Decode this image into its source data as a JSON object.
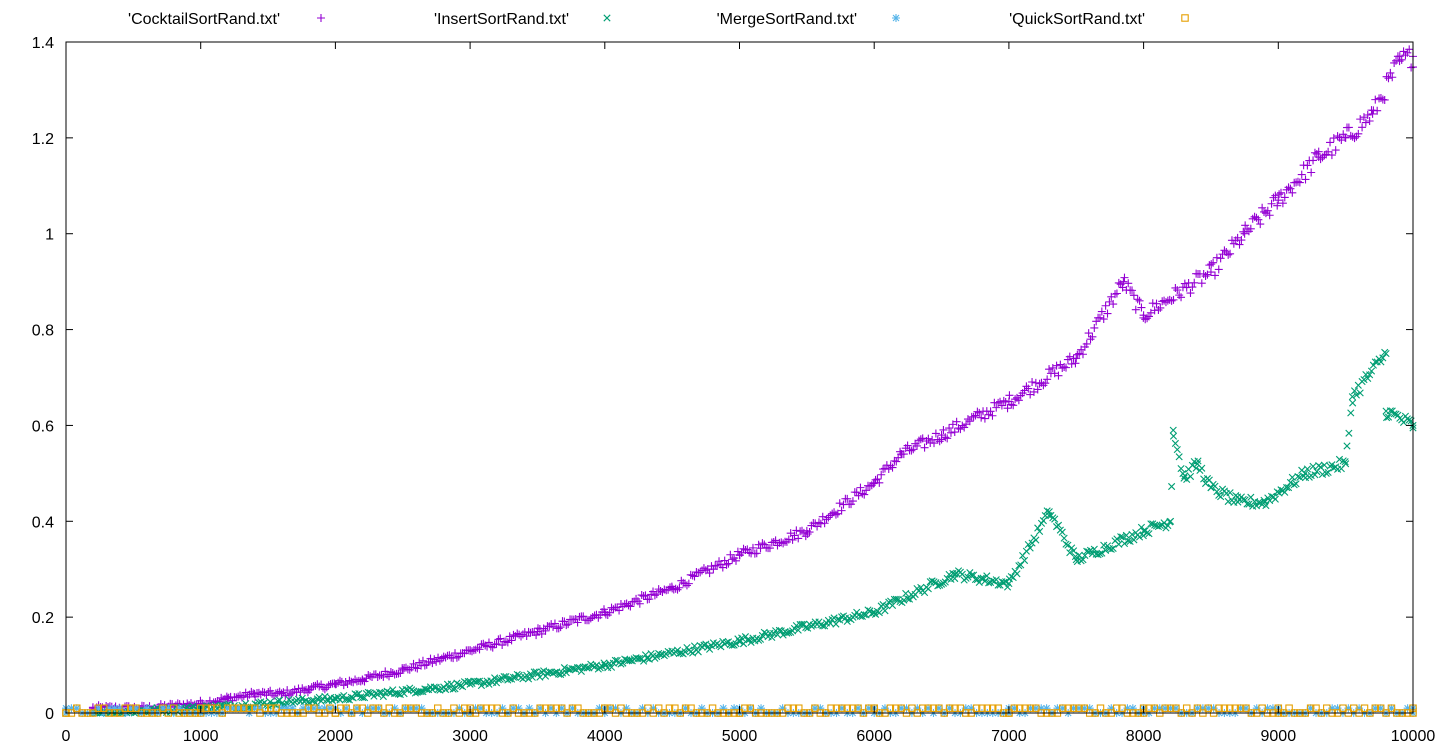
{
  "chart_data": {
    "type": "scatter",
    "title": "",
    "xlabel": "",
    "ylabel": "",
    "xlim": [
      0,
      10000
    ],
    "ylim": [
      0,
      1.4
    ],
    "x_ticks": [
      "0",
      "1000",
      "2000",
      "3000",
      "4000",
      "5000",
      "6000",
      "7000",
      "8000",
      "9000",
      "10000"
    ],
    "y_ticks": [
      "0",
      "0.2",
      "0.4",
      "0.6",
      "0.8",
      "1",
      "1.2",
      "1.4"
    ],
    "grid": false,
    "legend_position": "top",
    "series": [
      {
        "name": "'CocktailSortRand.txt'",
        "marker": "plus",
        "color": "#9400d3",
        "points": [
          [
            200,
            0.01
          ],
          [
            600,
            0.01
          ],
          [
            1000,
            0.02
          ],
          [
            1200,
            0.03
          ],
          [
            1400,
            0.04
          ],
          [
            1600,
            0.04
          ],
          [
            1800,
            0.05
          ],
          [
            2000,
            0.06
          ],
          [
            2200,
            0.07
          ],
          [
            2500,
            0.09
          ],
          [
            3000,
            0.13
          ],
          [
            3500,
            0.17
          ],
          [
            4000,
            0.21
          ],
          [
            4500,
            0.26
          ],
          [
            5000,
            0.33
          ],
          [
            5500,
            0.38
          ],
          [
            6000,
            0.48
          ],
          [
            6200,
            0.54
          ],
          [
            6500,
            0.58
          ],
          [
            7000,
            0.65
          ],
          [
            7500,
            0.74
          ],
          [
            7850,
            0.9
          ],
          [
            8000,
            0.83
          ],
          [
            8500,
            0.92
          ],
          [
            8750,
            1.0
          ],
          [
            9000,
            1.07
          ],
          [
            9300,
            1.16
          ],
          [
            9500,
            1.2
          ],
          [
            9700,
            1.25
          ],
          [
            9900,
            1.36
          ],
          [
            10000,
            1.37
          ]
        ]
      },
      {
        "name": "'InsertSortRand.txt'",
        "marker": "cross",
        "color": "#009e73",
        "points": [
          [
            200,
            0.0
          ],
          [
            1000,
            0.01
          ],
          [
            2000,
            0.03
          ],
          [
            3000,
            0.06
          ],
          [
            4000,
            0.1
          ],
          [
            5000,
            0.15
          ],
          [
            6000,
            0.21
          ],
          [
            6600,
            0.29
          ],
          [
            7000,
            0.27
          ],
          [
            7300,
            0.42
          ],
          [
            7500,
            0.32
          ],
          [
            8000,
            0.38
          ],
          [
            8200,
            0.4
          ],
          [
            8220,
            0.59
          ],
          [
            8300,
            0.49
          ],
          [
            8400,
            0.52
          ],
          [
            8500,
            0.47
          ],
          [
            8700,
            0.44
          ],
          [
            8900,
            0.44
          ],
          [
            9200,
            0.5
          ],
          [
            9500,
            0.52
          ],
          [
            9550,
            0.66
          ],
          [
            9800,
            0.75
          ],
          [
            9800,
            0.63
          ],
          [
            10000,
            0.6
          ]
        ]
      },
      {
        "name": "'MergeSortRand.txt'",
        "marker": "star",
        "color": "#56b4e9",
        "points": [
          [
            0,
            0.0
          ],
          [
            1000,
            0.0
          ],
          [
            2000,
            0.01
          ],
          [
            3000,
            0.0
          ],
          [
            4000,
            0.01
          ],
          [
            5000,
            0.0
          ],
          [
            6000,
            0.01
          ],
          [
            7000,
            0.0
          ],
          [
            8000,
            0.01
          ],
          [
            9000,
            0.0
          ],
          [
            10000,
            0.01
          ]
        ]
      },
      {
        "name": "'QuickSortRand.txt'",
        "marker": "square",
        "color": "#e69f00",
        "points": [
          [
            0,
            0.0
          ],
          [
            1000,
            0.0
          ],
          [
            2000,
            0.0
          ],
          [
            2400,
            0.01
          ],
          [
            3000,
            0.0
          ],
          [
            4000,
            0.01
          ],
          [
            5000,
            0.0
          ],
          [
            6000,
            0.01
          ],
          [
            7000,
            0.0
          ],
          [
            8000,
            0.01
          ],
          [
            9000,
            0.0
          ],
          [
            10000,
            0.01
          ]
        ]
      }
    ]
  }
}
